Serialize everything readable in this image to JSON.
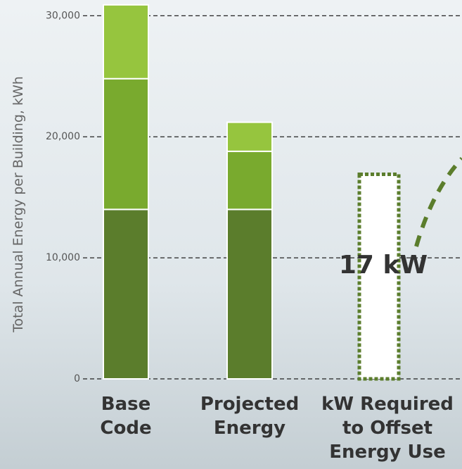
{
  "chart_data": {
    "type": "stacked-bar",
    "y_label": "Total Annual Energy per Building, kWh",
    "categories": [
      [
        "Base",
        "Code"
      ],
      [
        "Projected",
        "Energy"
      ],
      [
        "kW Required",
        "to Offset",
        "Energy Use"
      ]
    ],
    "series": [
      {
        "color": "#5b7d2c",
        "values": [
          14000,
          14000,
          null
        ]
      },
      {
        "color": "#79aa2e",
        "values": [
          10800,
          4800,
          null
        ]
      },
      {
        "color": "#96c53e",
        "values": [
          6100,
          2400,
          null
        ]
      },
      {
        "color": "#5b7d2c",
        "style": "dotted",
        "values": [
          null,
          null,
          16900
        ]
      }
    ],
    "annotation": "17 kW",
    "ylim": [
      0,
      31300
    ],
    "yticks": [
      0,
      {
        "value": 10000,
        "label": "10,000"
      },
      {
        "value": 20000,
        "label": "20,000"
      },
      {
        "value": 30000,
        "label": "30,000"
      }
    ],
    "grid": true
  }
}
